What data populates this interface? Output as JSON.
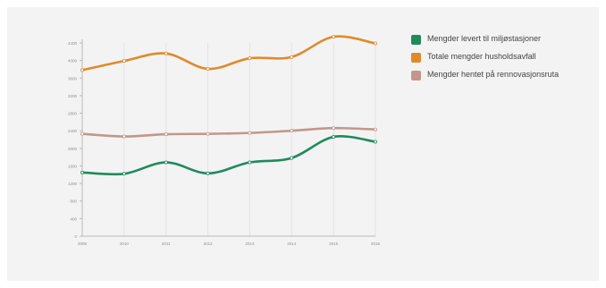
{
  "colors": {
    "panel_bg": "#f3f3f3",
    "grid": "#e3e3e3",
    "axis": "#b9b9b9",
    "tick_text": "#8d8d8d",
    "marker": "#ffffff"
  },
  "chart_data": {
    "type": "line",
    "title": "",
    "xlabel": "",
    "ylabel": "",
    "x": [
      "2009",
      "2010",
      "2011",
      "2012",
      "2013",
      "2014",
      "2015",
      "2016"
    ],
    "ylim": [
      0,
      4400
    ],
    "yticks": [
      0,
      400,
      800,
      1200,
      1600,
      2000,
      2400,
      2800,
      3200,
      3600,
      4000,
      4400
    ],
    "grid": true,
    "legend_position": "right",
    "series": [
      {
        "name": "Mengder levert til miljøstasjoner",
        "color": "#1f8a5c",
        "values": [
          1450,
          1420,
          1680,
          1430,
          1680,
          1780,
          2260,
          2150
        ]
      },
      {
        "name": "Totale mengder husholdsavfall",
        "color": "#e08a2b",
        "values": [
          3780,
          3990,
          4160,
          3810,
          4050,
          4080,
          4540,
          4390
        ]
      },
      {
        "name": "Mengder hentet på rennovasjonsruta",
        "color": "#c4968a",
        "values": [
          2330,
          2270,
          2320,
          2330,
          2350,
          2400,
          2460,
          2430
        ]
      }
    ]
  }
}
